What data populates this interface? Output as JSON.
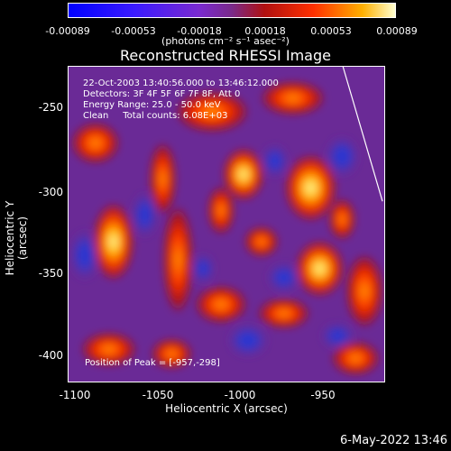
{
  "colorbar": {
    "ticks": [
      "-0.00089",
      "-0.00053",
      "-0.00018",
      "0.00018",
      "0.00053",
      "0.00089"
    ],
    "units": "(photons cm⁻² s⁻¹ asec⁻²)"
  },
  "title": "Reconstructed RHESSI Image",
  "info": {
    "time": "22-Oct-2003 13:40:56.000 to 13:46:12.000",
    "detectors": "Detectors: 3F 4F 5F 6F 7F 8F, Att 0",
    "energy": "Energy Range: 25.0 - 50.0 keV",
    "clean": "Clean     Total counts: 6.08E+03"
  },
  "peak": "Position of Peak = [-957,-298]",
  "y_axis": {
    "label": "Heliocentric Y (arcsec)",
    "ticks": [
      "-250",
      "-300",
      "-350",
      "-400"
    ]
  },
  "x_axis": {
    "label": "Heliocentric X (arcsec)",
    "ticks": [
      "-1100",
      "-1050",
      "-1000",
      "-950"
    ]
  },
  "footer": "6-May-2022 13:46",
  "colors": {
    "background": "#000000",
    "text": "#ffffff"
  }
}
